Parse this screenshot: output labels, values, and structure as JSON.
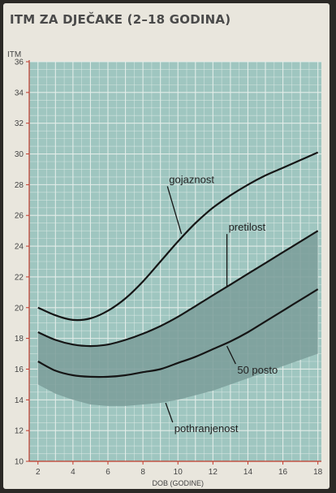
{
  "chart_data": {
    "type": "line",
    "title": "ITM ZA DJEČAKE (2–18 GODINA)",
    "ylabel": "ITM",
    "xlabel": "DOB (GODINE)",
    "xlim": [
      1.5,
      18.2
    ],
    "ylim": [
      10,
      36
    ],
    "xticks": [
      2,
      4,
      6,
      8,
      10,
      12,
      14,
      16,
      18
    ],
    "yticks": [
      10,
      12,
      14,
      16,
      18,
      20,
      22,
      24,
      26,
      28,
      30,
      32,
      34,
      36
    ],
    "grid": true,
    "colors": {
      "plot_bg": "#9fc6c0",
      "grid": "#e6efeb",
      "band": "#7a9c99",
      "line": "#151515",
      "axis": "#c0392b",
      "text": "#222222"
    },
    "band": {
      "x": [
        2,
        3,
        4,
        5,
        6,
        7,
        8,
        9,
        10,
        11,
        12,
        13,
        14,
        15,
        16,
        17,
        18
      ],
      "upper": [
        18.4,
        17.9,
        17.6,
        17.5,
        17.6,
        17.9,
        18.3,
        18.8,
        19.4,
        20.1,
        20.8,
        21.5,
        22.2,
        22.9,
        23.6,
        24.3,
        25.0
      ],
      "lower": [
        15.0,
        14.4,
        14.0,
        13.7,
        13.6,
        13.6,
        13.7,
        13.8,
        14.0,
        14.3,
        14.6,
        15.0,
        15.4,
        15.8,
        16.2,
        16.6,
        17.0
      ]
    },
    "series": [
      {
        "label": "gojaznost",
        "x": [
          2,
          3,
          4,
          5,
          6,
          7,
          8,
          9,
          10,
          11,
          12,
          13,
          14,
          15,
          16,
          17,
          18
        ],
        "y": [
          20.0,
          19.5,
          19.2,
          19.3,
          19.8,
          20.6,
          21.7,
          23.0,
          24.3,
          25.5,
          26.5,
          27.3,
          28.0,
          28.6,
          29.1,
          29.6,
          30.1
        ],
        "label_at": [
          10.2,
          24.8
        ],
        "label_pos": [
          9.4,
          28.1
        ]
      },
      {
        "label": "pretilost",
        "x": [
          2,
          3,
          4,
          5,
          6,
          7,
          8,
          9,
          10,
          11,
          12,
          13,
          14,
          15,
          16,
          17,
          18
        ],
        "y": [
          18.4,
          17.9,
          17.6,
          17.5,
          17.6,
          17.9,
          18.3,
          18.8,
          19.4,
          20.1,
          20.8,
          21.5,
          22.2,
          22.9,
          23.6,
          24.3,
          25.0
        ],
        "label_at": [
          12.8,
          21.4
        ],
        "label_pos": [
          12.8,
          25.0
        ]
      },
      {
        "label": "50 posto",
        "x": [
          2,
          3,
          4,
          5,
          6,
          7,
          8,
          9,
          10,
          11,
          12,
          13,
          14,
          15,
          16,
          17,
          18
        ],
        "y": [
          16.5,
          15.9,
          15.6,
          15.5,
          15.5,
          15.6,
          15.8,
          16.0,
          16.4,
          16.8,
          17.3,
          17.8,
          18.4,
          19.1,
          19.8,
          20.5,
          21.2
        ],
        "label_at": [
          12.8,
          17.5
        ],
        "label_pos": [
          13.3,
          15.7
        ]
      },
      {
        "label": "pothranjenost",
        "x": [],
        "y": [],
        "label_at": [
          9.3,
          13.8
        ],
        "label_pos": [
          9.7,
          11.9
        ]
      }
    ]
  }
}
